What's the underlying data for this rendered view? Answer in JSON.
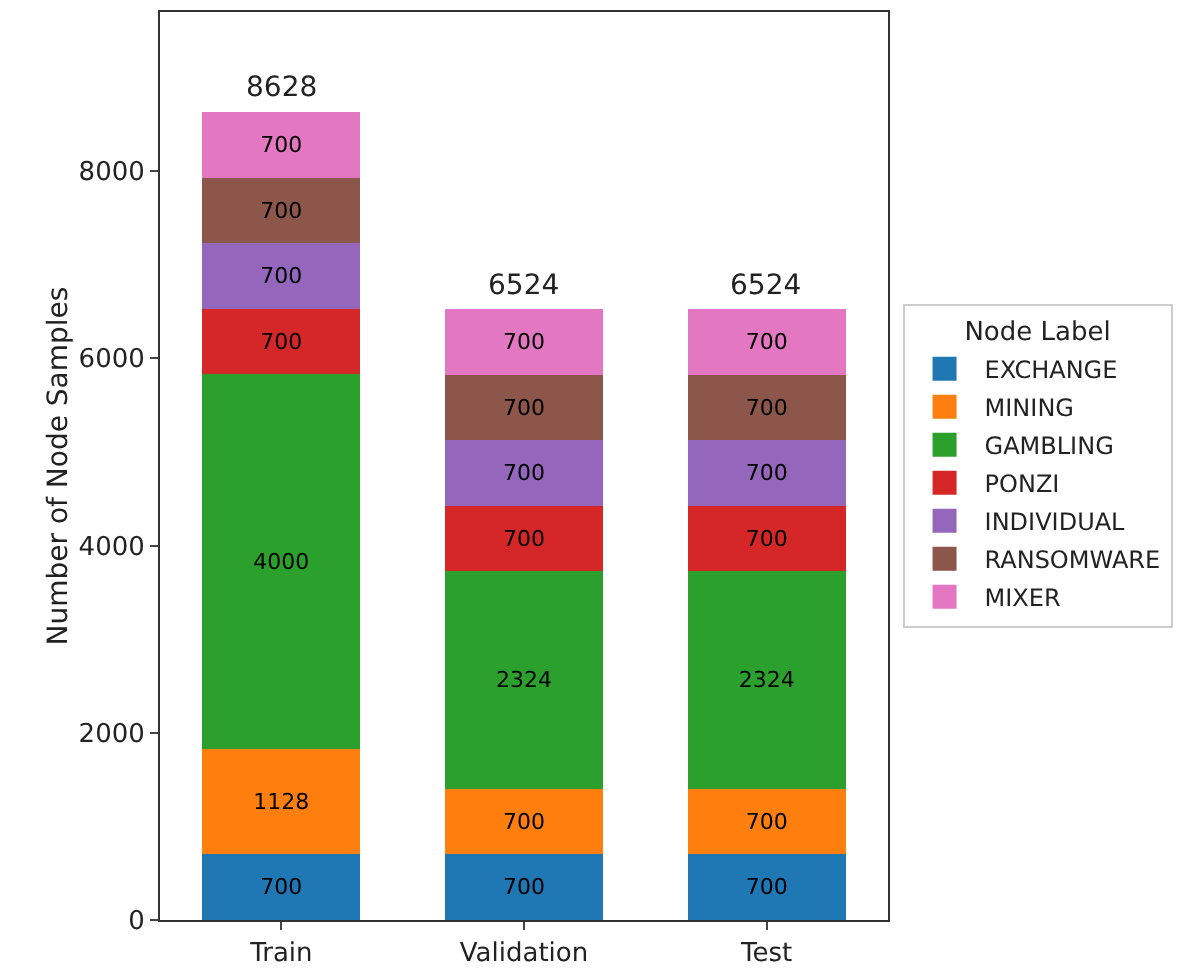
{
  "chart_data": {
    "type": "bar",
    "stacked": true,
    "ylabel": "Number of Node Samples",
    "legend_title": "Node Label",
    "legend": "right",
    "categories": [
      "Train",
      "Validation",
      "Test"
    ],
    "series": [
      {
        "name": "EXCHANGE",
        "color": "#1f77b4",
        "values": [
          700,
          700,
          700
        ]
      },
      {
        "name": "MINING",
        "color": "#ff7f0e",
        "values": [
          1128,
          700,
          700
        ]
      },
      {
        "name": "GAMBLING",
        "color": "#2ca02c",
        "values": [
          4000,
          2324,
          2324
        ]
      },
      {
        "name": "PONZI",
        "color": "#d62728",
        "values": [
          700,
          700,
          700
        ]
      },
      {
        "name": "INDIVIDUAL",
        "color": "#9467bd",
        "values": [
          700,
          700,
          700
        ]
      },
      {
        "name": "RANSOMWARE",
        "color": "#8c564b",
        "values": [
          700,
          700,
          700
        ]
      },
      {
        "name": "MIXER",
        "color": "#e377c2",
        "values": [
          700,
          700,
          700
        ]
      }
    ],
    "data_labels": true,
    "totals": [
      "8628",
      "6524",
      "6524"
    ],
    "ylim": [
      0,
      9700
    ],
    "yticks": [
      0,
      2000,
      4000,
      6000,
      8000
    ],
    "grid": false
  }
}
